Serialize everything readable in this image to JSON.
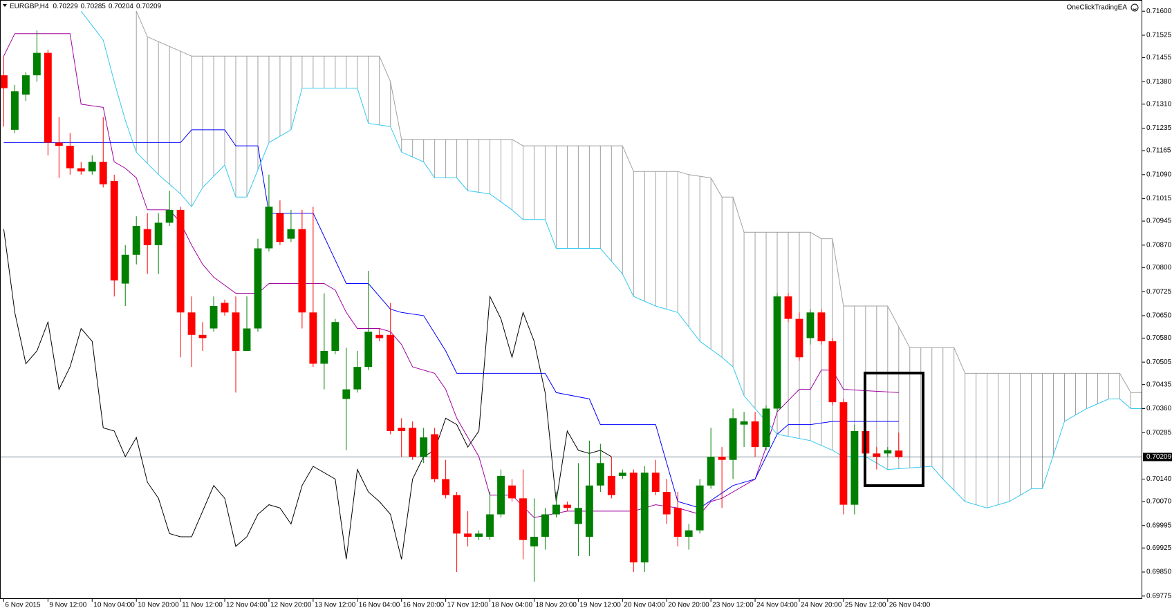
{
  "chart_data": {
    "type": "candlestick",
    "symbol": "EURGBP,H4",
    "expert": "OneClickTradingEA",
    "bull_color": "#007f00",
    "bear_color": "#ff0000",
    "xlim": [
      -0.34,
      103.04
    ],
    "ylim": [
      0.69766,
      0.71635
    ],
    "xticks": [
      {
        "value": 0,
        "label": "6 Nov 2015"
      },
      {
        "value": 4,
        "label": "9 Nov 12:00"
      },
      {
        "value": 8,
        "label": "10 Nov 04:00"
      },
      {
        "value": 12,
        "label": "10 Nov 20:00"
      },
      {
        "value": 16,
        "label": "11 Nov 12:00"
      },
      {
        "value": 20,
        "label": "12 Nov 04:00"
      },
      {
        "value": 24,
        "label": "12 Nov 20:00"
      },
      {
        "value": 28,
        "label": "13 Nov 12:00"
      },
      {
        "value": 32,
        "label": "16 Nov 04:00"
      },
      {
        "value": 36,
        "label": "16 Nov 20:00"
      },
      {
        "value": 40,
        "label": "17 Nov 12:00"
      },
      {
        "value": 44,
        "label": "18 Nov 04:00"
      },
      {
        "value": 48,
        "label": "18 Nov 20:00"
      },
      {
        "value": 52,
        "label": "19 Nov 12:00"
      },
      {
        "value": 56,
        "label": "20 Nov 04:00"
      },
      {
        "value": 60,
        "label": "20 Nov 20:00"
      },
      {
        "value": 64,
        "label": "23 Nov 12:00"
      },
      {
        "value": 68,
        "label": "24 Nov 04:00"
      },
      {
        "value": 72,
        "label": "24 Nov 20:00"
      },
      {
        "value": 76,
        "label": "25 Nov 12:00"
      },
      {
        "value": 80,
        "label": "26 Nov 04:00"
      }
    ],
    "yticks": [
      {
        "value": 0.716,
        "label": "0.71600"
      },
      0.71525,
      0.71455,
      {
        "value": 0.7138,
        "label": "0.71380"
      },
      {
        "value": 0.7131,
        "label": "0.71310"
      },
      0.71235,
      0.71165,
      {
        "value": 0.7109,
        "label": "0.71090"
      },
      0.71015,
      0.70945,
      {
        "value": 0.7087,
        "label": "0.70870"
      },
      {
        "value": 0.708,
        "label": "0.70800"
      },
      0.70725,
      {
        "value": 0.7065,
        "label": "0.70650"
      },
      {
        "value": 0.7058,
        "label": "0.70580"
      },
      0.70505,
      0.70435,
      {
        "value": 0.7036,
        "label": "0.70360"
      },
      0.70285,
      {
        "value": 0.7014,
        "label": "0.70140"
      },
      {
        "value": 0.7007,
        "label": "0.70070"
      },
      0.69995,
      0.69925,
      {
        "value": 0.6985,
        "label": "0.69850"
      },
      0.69775
    ],
    "open": [
      0.714,
      0.7123,
      0.7134,
      0.714,
      0.7147,
      0.7119,
      0.7118,
      0.7111,
      0.711,
      0.7113,
      0.7107,
      0.7075,
      0.7084,
      0.7092,
      0.7087,
      0.7094,
      0.7098,
      0.7066,
      0.7059,
      0.7061,
      0.7069,
      0.7066,
      0.7054,
      0.7061,
      0.7086,
      0.7097,
      0.7089,
      0.7092,
      0.7066,
      0.705,
      0.7054,
      0.7039,
      0.7042,
      0.7049,
      0.7059,
      0.7059,
      0.703,
      0.703,
      0.7021,
      0.7028,
      0.7014,
      0.7009,
      0.6997,
      0.6996,
      0.6996,
      0.7003,
      0.7012,
      0.7008,
      0.6993,
      0.6996,
      0.7003,
      0.7006,
      0.7,
      0.6996,
      0.7012,
      0.7015,
      0.7015,
      0.7016,
      0.6988,
      0.7016,
      0.701,
      0.7005,
      0.6996,
      0.6998,
      0.7012,
      0.7021,
      0.702,
      0.7031,
      0.7032,
      0.7024,
      0.7036,
      0.7071,
      0.7064,
      0.7058,
      0.7066,
      0.7057,
      0.7038,
      0.7006,
      0.7029,
      0.7022,
      0.7022,
      0.70229
    ],
    "high": [
      0.7146,
      0.7137,
      0.7141,
      0.7154,
      0.7148,
      0.7127,
      0.7122,
      0.7113,
      0.7115,
      0.7127,
      0.7109,
      0.7087,
      0.7096,
      0.7097,
      0.7097,
      0.7104,
      0.7099,
      0.7071,
      0.7063,
      0.7071,
      0.707,
      0.7071,
      0.7071,
      0.7089,
      0.7109,
      0.7101,
      0.7098,
      0.7098,
      0.7099,
      0.7072,
      0.7064,
      0.7055,
      0.7054,
      0.7079,
      0.7061,
      0.7069,
      0.7033,
      0.7032,
      0.703,
      0.703,
      0.702,
      0.701,
      0.7004,
      0.6998,
      0.701,
      0.7017,
      0.7014,
      0.7017,
      0.7008,
      0.7005,
      0.701,
      0.7007,
      0.7019,
      0.7026,
      0.7025,
      0.7021,
      0.7017,
      0.7017,
      0.7018,
      0.702,
      0.7014,
      0.701,
      0.7,
      0.7014,
      0.703,
      0.7024,
      0.7036,
      0.7035,
      0.7035,
      0.7037,
      0.7072,
      0.7072,
      0.7066,
      0.7067,
      0.7067,
      0.7058,
      0.7039,
      0.7031,
      0.7031,
      0.7024,
      0.7024,
      0.70285
    ],
    "low": [
      0.7124,
      0.7122,
      0.7132,
      0.7138,
      0.7115,
      0.7108,
      0.7109,
      0.7109,
      0.7109,
      0.7105,
      0.7071,
      0.7068,
      0.7081,
      0.7078,
      0.7078,
      0.7093,
      0.7052,
      0.7049,
      0.7054,
      0.706,
      0.7065,
      0.7041,
      0.7054,
      0.706,
      0.7085,
      0.7087,
      0.7088,
      0.7061,
      0.7049,
      0.7042,
      0.7053,
      0.7023,
      0.7041,
      0.7048,
      0.7057,
      0.7028,
      0.7021,
      0.702,
      0.7019,
      0.7013,
      0.7008,
      0.6985,
      0.6993,
      0.6995,
      0.6995,
      0.7002,
      0.7007,
      0.6989,
      0.6982,
      0.6992,
      0.7002,
      0.7004,
      0.699,
      0.699,
      0.701,
      0.7008,
      0.7014,
      0.6985,
      0.6985,
      0.7009,
      0.7,
      0.6993,
      0.6992,
      0.6997,
      0.7011,
      0.7005,
      0.7014,
      0.7024,
      0.7021,
      0.7023,
      0.7035,
      0.7063,
      0.7051,
      0.7056,
      0.7056,
      0.7037,
      0.7003,
      0.7003,
      0.7021,
      0.7017,
      0.7021,
      0.70204
    ],
    "close": [
      0.7136,
      0.7135,
      0.714,
      0.7147,
      0.7119,
      0.7118,
      0.7111,
      0.711,
      0.7113,
      0.7106,
      0.7076,
      0.7084,
      0.7093,
      0.7087,
      0.7094,
      0.7098,
      0.7066,
      0.7059,
      0.7058,
      0.7068,
      0.7066,
      0.7054,
      0.7061,
      0.7086,
      0.7099,
      0.7088,
      0.7092,
      0.7066,
      0.705,
      0.7054,
      0.7063,
      0.7042,
      0.7049,
      0.706,
      0.7058,
      0.7029,
      0.7029,
      0.7021,
      0.7027,
      0.7014,
      0.7009,
      0.6997,
      0.6996,
      0.6997,
      0.7003,
      0.7015,
      0.7008,
      0.6995,
      0.6996,
      0.7003,
      0.7006,
      0.7005,
      0.7005,
      0.7012,
      0.7019,
      0.7009,
      0.7016,
      0.6988,
      0.7016,
      0.701,
      0.7003,
      0.6996,
      0.6998,
      0.7012,
      0.7021,
      0.702,
      0.7033,
      0.7032,
      0.7024,
      0.7036,
      0.7071,
      0.7064,
      0.7052,
      0.7066,
      0.7057,
      0.7038,
      0.7006,
      0.7029,
      0.7022,
      0.7021,
      0.7023,
      0.70209
    ],
    "price_line_color": "#708090",
    "series": [
      {
        "type": "line",
        "color": "#a000a0",
        "x": [
          0,
          1,
          6,
          7,
          9,
          10,
          11,
          12,
          13,
          15,
          16,
          17,
          18,
          19,
          21,
          23,
          24,
          29,
          30,
          31,
          32,
          34,
          35,
          36,
          37,
          39,
          40,
          41,
          43,
          44,
          46,
          48,
          51,
          53,
          57,
          59,
          61,
          63,
          64,
          65,
          68,
          69,
          70,
          72,
          73,
          74,
          75,
          76,
          81
        ],
        "values": [
          0.7146,
          0.7153,
          0.7153,
          0.7131,
          0.713,
          0.7113,
          0.7111,
          0.7108,
          0.7098,
          0.7098,
          0.7094,
          0.7087,
          0.7081,
          0.7077,
          0.7072,
          0.7072,
          0.7075,
          0.7075,
          0.7073,
          0.7066,
          0.7061,
          0.7061,
          0.706,
          0.7056,
          0.7049,
          0.7047,
          0.7042,
          0.7033,
          0.7021,
          0.7009,
          0.7009,
          0.7002,
          0.7004,
          0.7004,
          0.7004,
          0.7006,
          0.7005,
          0.7003,
          0.7007,
          0.7008,
          0.7014,
          0.7024,
          0.7035,
          0.7042,
          0.7042,
          0.7048,
          0.7048,
          0.7042,
          0.7041
        ]
      },
      {
        "type": "line",
        "color": "#0000ff",
        "x": [
          0,
          16,
          17,
          20,
          21,
          23,
          24,
          28,
          31,
          33,
          35,
          36,
          38,
          40,
          41,
          49,
          50,
          53,
          54,
          59,
          61,
          62,
          63,
          66,
          68,
          69,
          70,
          71,
          73,
          75,
          81
        ],
        "values": [
          0.7119,
          0.7119,
          0.7123,
          0.7123,
          0.7118,
          0.7118,
          0.7097,
          0.7097,
          0.7075,
          0.7075,
          0.7067,
          0.7066,
          0.7065,
          0.7054,
          0.7047,
          0.7047,
          0.7041,
          0.7039,
          0.7031,
          0.7031,
          0.7007,
          0.7006,
          0.7005,
          0.7012,
          0.7014,
          0.7021,
          0.7028,
          0.7031,
          0.7031,
          0.7032,
          0.7032
        ]
      },
      {
        "type": "line",
        "color": "#000000",
        "x": [
          0,
          1,
          2,
          3,
          4,
          5,
          6,
          7,
          8,
          9,
          10,
          11,
          12,
          13,
          14,
          15,
          16,
          17,
          18,
          19,
          20,
          21,
          22,
          23,
          24,
          25,
          26,
          27,
          28,
          29,
          30,
          31,
          32,
          33,
          34,
          35,
          36,
          37,
          38,
          39,
          40,
          41,
          42,
          43,
          44,
          45,
          46,
          47,
          48,
          49,
          50,
          51,
          52,
          53,
          54,
          55
        ],
        "values": [
          0.7092,
          0.7066,
          0.705,
          0.7054,
          0.7063,
          0.7042,
          0.7049,
          0.7061,
          0.7057,
          0.703,
          0.7029,
          0.7021,
          0.7027,
          0.7013,
          0.7008,
          0.6997,
          0.6996,
          0.6996,
          0.7004,
          0.7012,
          0.7008,
          0.6993,
          0.6996,
          0.7003,
          0.7006,
          0.7005,
          0.7,
          0.7012,
          0.7018,
          0.7016,
          0.7014,
          0.6989,
          0.7017,
          0.701,
          0.7007,
          0.7003,
          0.6989,
          0.7014,
          0.7021,
          0.7023,
          0.7033,
          0.7031,
          0.7024,
          0.7029,
          0.7071,
          0.7064,
          0.7052,
          0.7066,
          0.7057,
          0.7041,
          0.7007,
          0.7029,
          0.7023,
          0.7022,
          0.7023,
          0.7021
        ]
      },
      {
        "type": "line",
        "color": "#33c8f0",
        "hatch": true,
        "x": [
          7,
          9,
          10,
          11,
          12,
          14,
          16,
          17,
          18,
          20,
          21,
          22,
          24,
          26,
          27,
          32,
          33,
          35,
          36,
          38,
          39,
          41,
          42,
          44,
          46,
          47,
          49,
          50,
          54,
          56,
          57,
          59,
          61,
          63,
          65,
          66,
          67,
          70,
          73,
          75,
          76,
          78,
          80,
          84,
          85,
          87,
          89,
          91,
          93,
          94,
          96,
          98,
          100,
          101,
          102,
          103
        ],
        "values": [
          0.716,
          0.7151,
          0.7138,
          0.7126,
          0.7116,
          0.7109,
          0.7103,
          0.7099,
          0.7105,
          0.7112,
          0.7102,
          0.7102,
          0.7119,
          0.7123,
          0.7136,
          0.7136,
          0.7125,
          0.7124,
          0.7116,
          0.7113,
          0.7108,
          0.7108,
          0.7104,
          0.7103,
          0.7098,
          0.7095,
          0.7095,
          0.7086,
          0.7086,
          0.7078,
          0.7071,
          0.7068,
          0.7066,
          0.7057,
          0.7052,
          0.7049,
          0.704,
          0.7028,
          0.7026,
          0.7023,
          0.7021,
          0.7021,
          0.7017,
          0.7018,
          0.7014,
          0.7007,
          0.7005,
          0.7007,
          0.7011,
          0.7011,
          0.7032,
          0.7036,
          0.7039,
          0.7039,
          0.7036,
          0.7036
        ]
      },
      {
        "type": "line",
        "color": "#a0a0a0",
        "hatch": true,
        "x": [
          12,
          13,
          17,
          34,
          35,
          36,
          46,
          47,
          56,
          57,
          61,
          62,
          64,
          65,
          66,
          67,
          73,
          74,
          75,
          76,
          80,
          82,
          86,
          87,
          101,
          102,
          103
        ],
        "values": [
          0.716,
          0.7152,
          0.7146,
          0.7146,
          0.7138,
          0.712,
          0.712,
          0.7118,
          0.7118,
          0.711,
          0.711,
          0.7109,
          0.7108,
          0.7102,
          0.7102,
          0.7091,
          0.7091,
          0.7089,
          0.7089,
          0.7068,
          0.7068,
          0.7055,
          0.7055,
          0.7047,
          0.7047,
          0.7041,
          0.7041
        ]
      }
    ]
  }
}
